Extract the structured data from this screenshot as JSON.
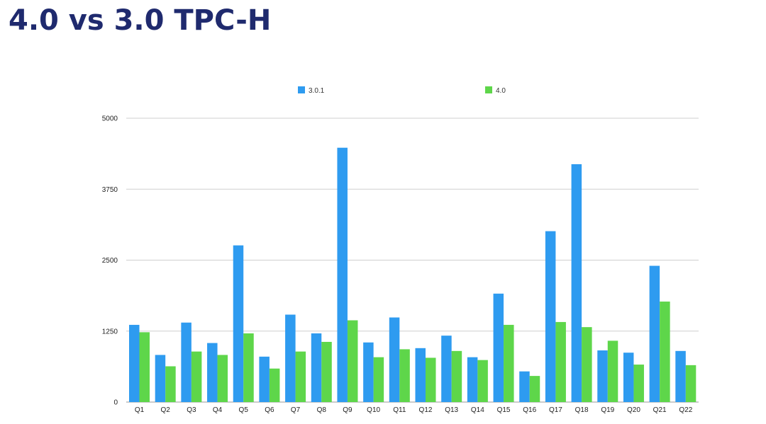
{
  "slide": {
    "title": "4.0 vs 3.0 TPC-H"
  },
  "chart_data": {
    "type": "bar",
    "title": "",
    "xlabel": "",
    "ylabel": "",
    "categories": [
      "Q1",
      "Q2",
      "Q3",
      "Q4",
      "Q5",
      "Q6",
      "Q7",
      "Q8",
      "Q9",
      "Q10",
      "Q11",
      "Q12",
      "Q13",
      "Q14",
      "Q15",
      "Q16",
      "Q17",
      "Q18",
      "Q19",
      "Q20",
      "Q21",
      "Q22"
    ],
    "series": [
      {
        "name": "3.0.1",
        "color": "#2e9bf0",
        "values": [
          1360,
          830,
          1400,
          1040,
          2760,
          800,
          1540,
          1210,
          4480,
          1050,
          1490,
          950,
          1170,
          790,
          1910,
          540,
          3010,
          4190,
          910,
          870,
          2400,
          900
        ]
      },
      {
        "name": "4.0",
        "color": "#5ed64a",
        "values": [
          1230,
          630,
          890,
          830,
          1210,
          590,
          890,
          1060,
          1440,
          790,
          930,
          780,
          900,
          740,
          1360,
          460,
          1410,
          1320,
          1080,
          660,
          1770,
          650
        ]
      }
    ],
    "ylim": [
      0,
      5000
    ],
    "yticks": [
      0,
      1250,
      2500,
      3750,
      5000
    ],
    "ytick_labels": [
      "0",
      "1250",
      "2500",
      "3750",
      "5000"
    ],
    "grid": true,
    "legend_position": "top"
  }
}
